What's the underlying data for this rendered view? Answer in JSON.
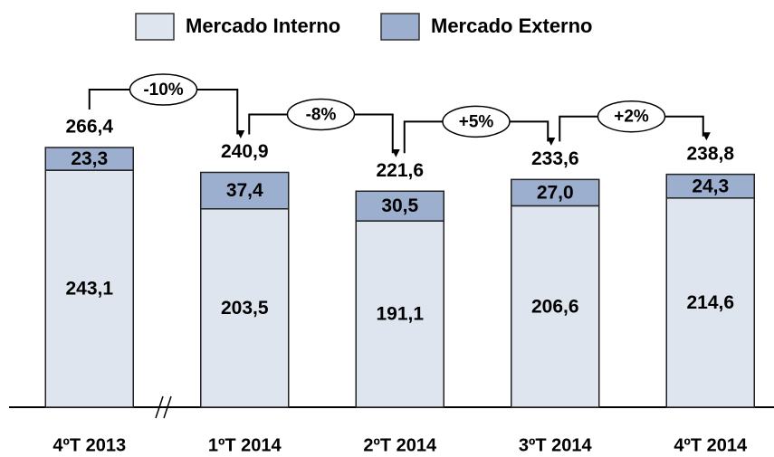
{
  "chart_data": {
    "type": "stacked_bar",
    "categories": [
      "4ºT 2013",
      "1ºT 2014",
      "2ºT 2014",
      "3ºT 2014",
      "4ºT 2014"
    ],
    "series": [
      {
        "name": "Mercado Interno",
        "color": "#dfe5ef",
        "values": [
          243.1,
          203.5,
          191.1,
          206.6,
          214.6
        ],
        "value_labels": [
          "243,1",
          "203,5",
          "191,1",
          "206,6",
          "214,6"
        ]
      },
      {
        "name": "Mercado Externo",
        "color": "#9dafcf",
        "values": [
          23.3,
          37.4,
          30.5,
          27.0,
          24.3
        ],
        "value_labels": [
          "23,3",
          "37,4",
          "30,5",
          "27,0",
          "24,3"
        ]
      }
    ],
    "totals": {
      "values": [
        266.4,
        240.9,
        221.6,
        233.6,
        238.8
      ],
      "value_labels": [
        "266,4",
        "240,9",
        "221,6",
        "233,6",
        "238,8"
      ]
    },
    "annotations": [
      "-10%",
      "-8%",
      "+5%",
      "+2%"
    ]
  }
}
